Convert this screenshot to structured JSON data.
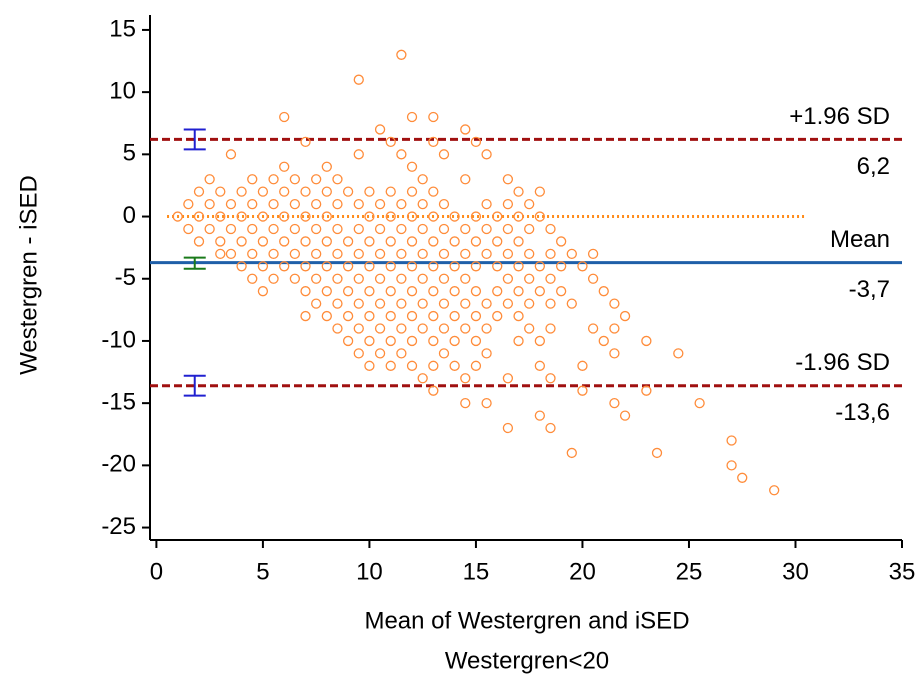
{
  "chart_data": {
    "type": "scatter",
    "x_label": "Mean of Westergren and iSED",
    "x_sublabel": "Westergren<20",
    "y_label": "Westergren - iSED",
    "xlim": [
      -0.3,
      35
    ],
    "ylim": [
      -26,
      16.2
    ],
    "xticks": [
      0,
      5,
      10,
      15,
      20,
      25,
      30,
      35
    ],
    "yticks": [
      15,
      10,
      5,
      0,
      -5,
      -10,
      -15,
      -20,
      -25
    ],
    "series": [
      {
        "color": "#ff8c3a",
        "x": [
          1,
          1.5,
          1.5,
          2,
          2,
          2,
          2.5,
          2.5,
          2.5,
          3,
          3,
          3,
          3,
          3.5,
          3.5,
          3.5,
          3.5,
          4,
          4,
          4,
          4,
          4.5,
          4.5,
          4.5,
          4.5,
          4.5,
          5,
          5,
          5,
          5,
          5,
          5.5,
          5.5,
          5.5,
          5.5,
          5.5,
          6,
          6,
          6,
          6,
          6,
          6,
          6.5,
          6.5,
          6.5,
          6.5,
          6.5,
          7,
          7,
          7,
          7,
          7,
          7,
          7,
          7.5,
          7.5,
          7.5,
          7.5,
          7.5,
          7.5,
          8,
          8,
          8,
          8,
          8,
          8,
          8,
          8.5,
          8.5,
          8.5,
          8.5,
          8.5,
          8.5,
          8.5,
          9,
          9,
          9,
          9,
          9,
          9,
          9.5,
          9.5,
          9.5,
          9.5,
          9.5,
          9.5,
          9.5,
          9.5,
          9.5,
          10,
          10,
          10,
          10,
          10,
          10,
          10,
          10,
          10.5,
          10.5,
          10.5,
          10.5,
          10.5,
          10.5,
          10.5,
          10.5,
          11,
          11,
          11,
          11,
          11,
          11,
          11,
          11,
          11,
          11.5,
          11.5,
          11.5,
          11.5,
          11.5,
          11.5,
          11.5,
          11.5,
          11.5,
          12,
          12,
          12,
          12,
          12,
          12,
          12,
          12,
          12,
          12,
          12.5,
          12.5,
          12.5,
          12.5,
          12.5,
          12.5,
          12.5,
          12.5,
          13,
          13,
          13,
          13,
          13,
          13,
          13,
          13,
          13,
          13,
          13,
          13.5,
          13.5,
          13.5,
          13.5,
          13.5,
          13.5,
          13.5,
          13.5,
          14,
          14,
          14,
          14,
          14,
          14,
          14,
          14.5,
          14.5,
          14.5,
          14.5,
          14.5,
          14.5,
          14.5,
          14.5,
          14.5,
          15,
          15,
          15,
          15,
          15,
          15,
          15,
          15,
          15.5,
          15.5,
          15.5,
          15.5,
          15.5,
          15.5,
          15.5,
          15.5,
          16,
          16,
          16,
          16,
          16,
          16.5,
          16.5,
          16.5,
          16.5,
          16.5,
          16.5,
          16.5,
          16.5,
          17,
          17,
          17,
          17,
          17,
          17,
          17,
          17.5,
          17.5,
          17.5,
          17.5,
          17.5,
          17.5,
          18,
          18,
          18,
          18,
          18,
          18,
          18,
          18.5,
          18.5,
          18.5,
          18.5,
          18.5,
          18.5,
          18.5,
          19,
          19,
          19,
          19.5,
          19.5,
          19.5,
          20,
          20,
          20,
          20.5,
          20.5,
          20.5,
          21,
          21,
          21.5,
          21.5,
          21.5,
          21.5,
          22,
          22,
          23,
          23,
          23.5,
          24.5,
          25.5,
          27,
          27,
          27.5,
          29
        ],
        "values": [
          0,
          1,
          -1,
          2,
          0,
          -2,
          3,
          1,
          -1,
          2,
          0,
          -2,
          -3,
          5,
          1,
          -1,
          -3,
          2,
          0,
          -2,
          -4,
          3,
          1,
          -1,
          -3,
          -5,
          2,
          0,
          -2,
          -4,
          -6,
          3,
          1,
          -1,
          -3,
          -5,
          8,
          4,
          2,
          0,
          -2,
          -4,
          3,
          1,
          -1,
          -3,
          -5,
          6,
          2,
          0,
          -2,
          -4,
          -6,
          -8,
          3,
          1,
          -1,
          -3,
          -5,
          -7,
          4,
          2,
          0,
          -2,
          -4,
          -6,
          -8,
          3,
          1,
          -1,
          -3,
          -5,
          -7,
          -9,
          2,
          -2,
          -4,
          -6,
          -8,
          -10,
          11,
          5,
          1,
          -1,
          -3,
          -5,
          -7,
          -9,
          -11,
          2,
          0,
          -2,
          -4,
          -6,
          -8,
          -10,
          -12,
          7,
          1,
          -1,
          -3,
          -5,
          -7,
          -9,
          -11,
          6,
          2,
          0,
          -2,
          -4,
          -6,
          -8,
          -10,
          -12,
          13,
          5,
          1,
          -1,
          -3,
          -5,
          -7,
          -9,
          -11,
          8,
          4,
          2,
          0,
          -2,
          -4,
          -6,
          -8,
          -10,
          -12,
          3,
          1,
          -1,
          -3,
          -5,
          -7,
          -9,
          -13,
          8,
          6,
          2,
          0,
          -2,
          -4,
          -6,
          -8,
          -10,
          -12,
          -14,
          5,
          1,
          -1,
          -3,
          -5,
          -7,
          -9,
          -11,
          0,
          -2,
          -4,
          -6,
          -8,
          -10,
          -12,
          7,
          3,
          -1,
          -3,
          -5,
          -7,
          -9,
          -13,
          -15,
          6,
          0,
          -2,
          -4,
          -6,
          -8,
          -10,
          -12,
          5,
          1,
          -1,
          -3,
          -7,
          -9,
          -11,
          -15,
          0,
          -2,
          -4,
          -6,
          -8,
          3,
          1,
          -1,
          -3,
          -5,
          -7,
          -13,
          -17,
          2,
          0,
          -2,
          -4,
          -6,
          -8,
          -10,
          1,
          -1,
          -3,
          -5,
          -7,
          -9,
          2,
          0,
          -4,
          -6,
          -10,
          -12,
          -16,
          -1,
          -3,
          -5,
          -7,
          -9,
          -13,
          -17,
          -2,
          -4,
          -6,
          -3,
          -7,
          -19,
          -4,
          -12,
          -14,
          -3,
          -5,
          -9,
          -6,
          -10,
          -7,
          -9,
          -11,
          -15,
          -8,
          -16,
          -10,
          -14,
          -19,
          -11,
          -15,
          -18,
          -20,
          -21,
          -22
        ]
      }
    ],
    "zero_line": {
      "value": 0,
      "x": [
        0.5,
        30.5
      ],
      "color": "#ff8c1a"
    },
    "reference_lines": [
      {
        "name": "+1.96 SD",
        "value": 6.2,
        "value_label": "6,2",
        "color": "#a01010",
        "dashed": true,
        "ci": [
          5.4,
          7.0
        ],
        "ci_color": "#2020d0"
      },
      {
        "name": "Mean",
        "value": -3.7,
        "value_label": "-3,7",
        "color": "#1f5fa8",
        "dashed": false,
        "ci": [
          -4.2,
          -3.3
        ],
        "ci_color": "#1a7a1a"
      },
      {
        "name": "-1.96 SD",
        "value": -13.6,
        "value_label": "-13,6",
        "color": "#a01010",
        "dashed": true,
        "ci": [
          -14.4,
          -12.8
        ],
        "ci_color": "#2020d0"
      }
    ],
    "ci_x": 1.8
  }
}
